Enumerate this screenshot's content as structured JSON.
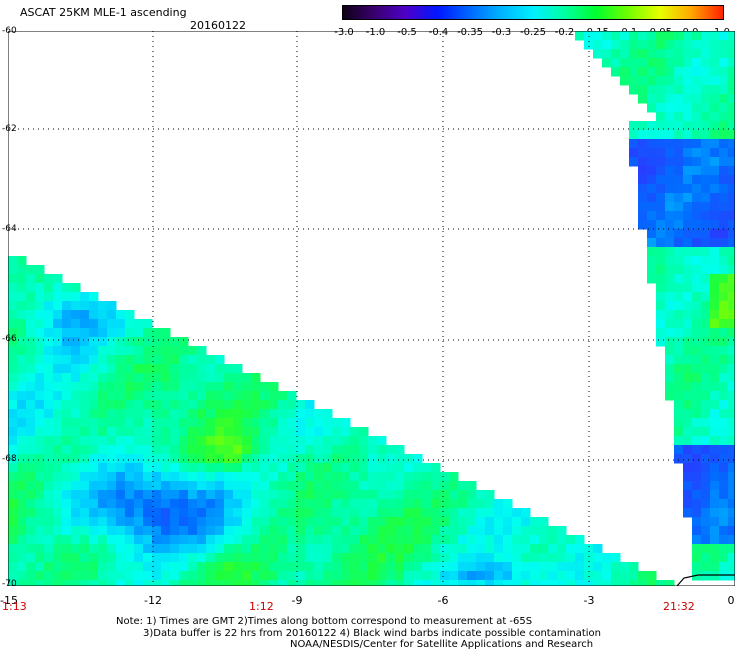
{
  "header": {
    "title": "ASCAT 25KM MLE-1 ascending",
    "date": "20160122"
  },
  "colorbar": {
    "labels": [
      "-3.0",
      "-1.0",
      "-0.5",
      "-0.4",
      "-0.35",
      "-0.3",
      "-0.25",
      "-0.2",
      "-0.15",
      "-0.1",
      "-0.05",
      "0.0",
      "1.0"
    ],
    "colors": [
      "#1a0030",
      "#45009a",
      "#2a25ff",
      "#0070ff",
      "#00b0ff",
      "#00e8ff",
      "#00ffb0",
      "#00ff40",
      "#50ff00",
      "#c0ff00",
      "#ffe000",
      "#ff9000",
      "#ff2000"
    ]
  },
  "axes": {
    "lat_labels": [
      "-60",
      "-62",
      "-64",
      "-66",
      "-68",
      "-70"
    ],
    "lon_labels": [
      "-15",
      "-12",
      "-9",
      "-6",
      "-3",
      "0"
    ],
    "time_labels": [
      "1:13",
      "1:12",
      "21:32"
    ]
  },
  "notes": {
    "line1": "Note: 1) Times are GMT 2)Times along bottom correspond to measurement at -65S",
    "line2": "3)Data buffer is 22 hrs from 20160122 4) Black wind barbs indicate possible contamination",
    "line3": "NOAA/NESDIS/Center for Satellite Applications and Research"
  }
}
